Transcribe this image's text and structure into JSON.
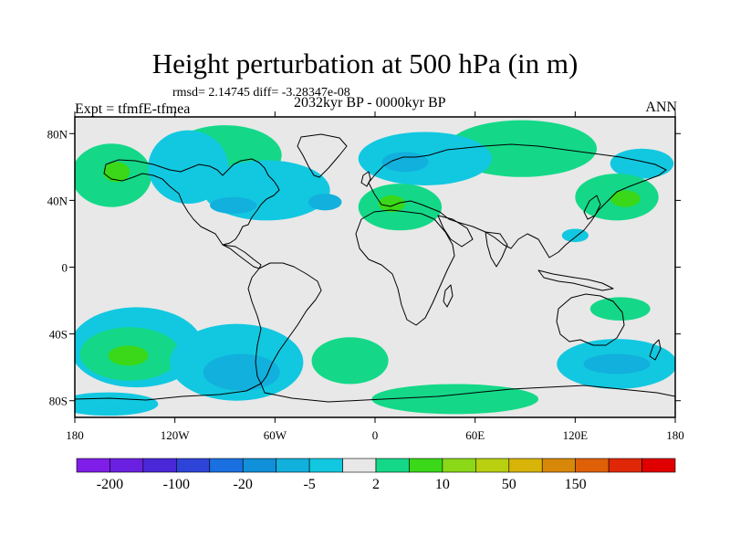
{
  "title": "Height perturbation at 500 hPa (in m)",
  "subtitle": "rmsd= 2.14745 diff= -3.28347e-08",
  "left_label": "Expt = tfmfE-tfmea",
  "center_label": "2032kyr BP - 0000kyr BP",
  "right_label": "ANN",
  "map": {
    "projection": "cylindrical-equidistant",
    "lon_range": [
      -180,
      180
    ],
    "lat_range": [
      -90,
      90
    ],
    "background": "#e8e8e8",
    "lat_ticks": [
      {
        "label": "80N",
        "value": 80
      },
      {
        "label": "40N",
        "value": 40
      },
      {
        "label": "0",
        "value": 0
      },
      {
        "label": "40S",
        "value": -40
      },
      {
        "label": "80S",
        "value": -80
      }
    ],
    "lon_ticks": [
      {
        "label": "180",
        "value": -180
      },
      {
        "label": "120W",
        "value": -120
      },
      {
        "label": "60W",
        "value": -60
      },
      {
        "label": "0",
        "value": 0
      },
      {
        "label": "60E",
        "value": 60
      },
      {
        "label": "120E",
        "value": 120
      },
      {
        "label": "180",
        "value": 180
      }
    ]
  },
  "colorbar": {
    "colors": [
      "#7e1ee8",
      "#6a20e0",
      "#4a28d8",
      "#2e44d8",
      "#1a70e0",
      "#1090d8",
      "#12b0dc",
      "#12c8e0",
      "#e8e8e8",
      "#14d888",
      "#3ad818",
      "#8ad818",
      "#b8d010",
      "#d8b408",
      "#d88808",
      "#e06008",
      "#e02808",
      "#e00000"
    ],
    "labels": [
      {
        "text": "-200",
        "boundary": 1
      },
      {
        "text": "-100",
        "boundary": 3
      },
      {
        "text": "-20",
        "boundary": 5
      },
      {
        "text": "-5",
        "boundary": 7
      },
      {
        "text": "2",
        "boundary": 9
      },
      {
        "text": "10",
        "boundary": 11
      },
      {
        "text": "50",
        "boundary": 13
      },
      {
        "text": "150",
        "boundary": 15
      }
    ]
  },
  "field_blobs": [
    {
      "level": "pos_light",
      "lon": -158,
      "lat": 55,
      "rlon": 24,
      "rlat": 19
    },
    {
      "level": "pos_mid",
      "lon": -155,
      "lat": 57,
      "rlon": 8,
      "rlat": 6
    },
    {
      "level": "pos_light",
      "lon": -90,
      "lat": 67,
      "rlon": 34,
      "rlat": 18
    },
    {
      "level": "pos_light",
      "lon": 88,
      "lat": 71,
      "rlon": 45,
      "rlat": 17
    },
    {
      "level": "neg_light",
      "lon": 30,
      "lat": 65,
      "rlon": 40,
      "rlat": 16
    },
    {
      "level": "neg_mid",
      "lon": 18,
      "lat": 63,
      "rlon": 14,
      "rlat": 6
    },
    {
      "level": "neg_light",
      "lon": -65,
      "lat": 46,
      "rlon": 38,
      "rlat": 18
    },
    {
      "level": "neg_light",
      "lon": -112,
      "lat": 60,
      "rlon": 24,
      "rlat": 22
    },
    {
      "level": "neg_mid",
      "lon": -85,
      "lat": 37,
      "rlon": 14,
      "rlat": 5
    },
    {
      "level": "neg_mid",
      "lon": -30,
      "lat": 39,
      "rlon": 10,
      "rlat": 5
    },
    {
      "level": "pos_light",
      "lon": 15,
      "lat": 36,
      "rlon": 25,
      "rlat": 14
    },
    {
      "level": "pos_mid",
      "lon": 10,
      "lat": 38,
      "rlon": 8,
      "rlat": 5
    },
    {
      "level": "neg_light",
      "lon": 160,
      "lat": 62,
      "rlon": 19,
      "rlat": 9
    },
    {
      "level": "pos_light",
      "lon": 145,
      "lat": 42,
      "rlon": 25,
      "rlat": 14
    },
    {
      "level": "pos_mid",
      "lon": 150,
      "lat": 41,
      "rlon": 9,
      "rlat": 5
    },
    {
      "level": "neg_light",
      "lon": 120,
      "lat": 19,
      "rlon": 8,
      "rlat": 4
    },
    {
      "level": "pos_light",
      "lon": 147,
      "lat": -25,
      "rlon": 18,
      "rlat": 7
    },
    {
      "level": "neg_light",
      "lon": -143,
      "lat": -48,
      "rlon": 40,
      "rlat": 24
    },
    {
      "level": "pos_light",
      "lon": -147,
      "lat": -52,
      "rlon": 30,
      "rlat": 16
    },
    {
      "level": "pos_mid",
      "lon": -148,
      "lat": -53,
      "rlon": 12,
      "rlat": 6
    },
    {
      "level": "neg_light",
      "lon": -83,
      "lat": -57,
      "rlon": 40,
      "rlat": 23
    },
    {
      "level": "neg_mid",
      "lon": -80,
      "lat": -63,
      "rlon": 23,
      "rlat": 11
    },
    {
      "level": "pos_light",
      "lon": -15,
      "lat": -56,
      "rlon": 23,
      "rlat": 14
    },
    {
      "level": "pos_light",
      "lon": 48,
      "lat": -79,
      "rlon": 50,
      "rlat": 9
    },
    {
      "level": "neg_light",
      "lon": 145,
      "lat": -58,
      "rlon": 36,
      "rlat": 15
    },
    {
      "level": "neg_mid",
      "lon": 145,
      "lat": -58,
      "rlon": 20,
      "rlat": 6
    },
    {
      "level": "neg_light",
      "lon": -160,
      "lat": -82,
      "rlon": 30,
      "rlat": 7
    }
  ]
}
